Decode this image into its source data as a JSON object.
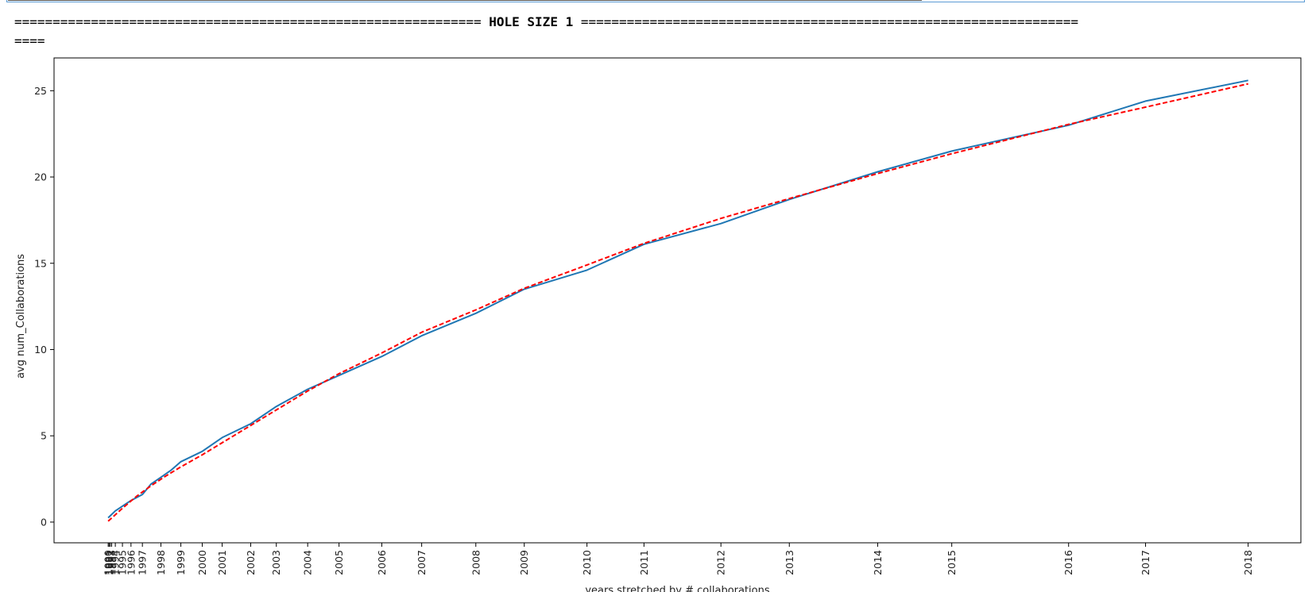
{
  "output": {
    "banner_left": "=============================================================",
    "banner_title": "HOLE SIZE 1",
    "banner_right": "=================================================================",
    "banner_tail": "===="
  },
  "chart_data": {
    "type": "line",
    "xlabel": "years stretched by # collaborations",
    "ylabel": "avg num_Collaborations",
    "ylim": [
      -1.2,
      26.9
    ],
    "yticks": [
      0,
      5,
      10,
      15,
      20,
      25
    ],
    "grid": false,
    "x_ticks": [
      {
        "label": "1990",
        "x": 0.0
      },
      {
        "label": "1991",
        "x": 0.03
      },
      {
        "label": "1992",
        "x": 0.07
      },
      {
        "label": "1993",
        "x": 0.12
      },
      {
        "label": "1994",
        "x": 0.25
      },
      {
        "label": "1995",
        "x": 0.5
      },
      {
        "label": "1996",
        "x": 0.8
      },
      {
        "label": "1997",
        "x": 1.2
      },
      {
        "label": "1998",
        "x": 1.85
      },
      {
        "label": "1999",
        "x": 2.55
      },
      {
        "label": "2000",
        "x": 3.3
      },
      {
        "label": "2001",
        "x": 4.0
      },
      {
        "label": "2002",
        "x": 5.0
      },
      {
        "label": "2003",
        "x": 5.9
      },
      {
        "label": "2004",
        "x": 7.0
      },
      {
        "label": "2005",
        "x": 8.1
      },
      {
        "label": "2006",
        "x": 9.6
      },
      {
        "label": "2007",
        "x": 11.0
      },
      {
        "label": "2008",
        "x": 12.9
      },
      {
        "label": "2009",
        "x": 14.6
      },
      {
        "label": "2010",
        "x": 16.8
      },
      {
        "label": "2011",
        "x": 18.8
      },
      {
        "label": "2012",
        "x": 21.5
      },
      {
        "label": "2013",
        "x": 23.9
      },
      {
        "label": "2014",
        "x": 27.0
      },
      {
        "label": "2015",
        "x": 29.6
      },
      {
        "label": "2016",
        "x": 33.7
      },
      {
        "label": "2017",
        "x": 36.4
      },
      {
        "label": "2018",
        "x": 40.0
      }
    ],
    "xlim": [
      -1.9,
      41.85
    ],
    "series": [
      {
        "color": "#1f77b4",
        "style": "solid",
        "x": [
          0.0,
          0.25,
          0.8,
          1.2,
          1.5,
          1.85,
          2.2,
          2.55,
          3.3,
          4.0,
          5.0,
          5.9,
          7.0,
          8.1,
          9.6,
          11.0,
          12.9,
          14.6,
          16.8,
          18.8,
          21.5,
          23.9,
          27.0,
          29.6,
          31.5,
          33.7,
          36.4,
          40.0
        ],
        "y": [
          0.25,
          0.65,
          1.25,
          1.6,
          2.2,
          2.6,
          3.0,
          3.5,
          4.1,
          4.9,
          5.7,
          6.7,
          7.7,
          8.5,
          9.6,
          10.8,
          12.1,
          13.5,
          14.6,
          16.1,
          17.3,
          18.7,
          20.3,
          21.5,
          22.2,
          23.0,
          24.4,
          25.6
        ]
      },
      {
        "color": "#ff0000",
        "style": "dashed",
        "x": [
          0.0,
          0.5,
          1.0,
          1.5,
          2.0,
          2.5,
          3.3,
          4.0,
          5.0,
          6.0,
          7.0,
          8.1,
          9.6,
          11.0,
          12.9,
          14.6,
          16.8,
          18.8,
          21.5,
          23.9,
          27.0,
          29.6,
          33.7,
          36.4,
          40.0
        ],
        "y": [
          0.05,
          0.8,
          1.5,
          2.1,
          2.65,
          3.15,
          3.9,
          4.6,
          5.6,
          6.6,
          7.6,
          8.6,
          9.8,
          11.0,
          12.3,
          13.55,
          14.9,
          16.15,
          17.6,
          18.75,
          20.2,
          21.35,
          23.05,
          24.05,
          25.4
        ]
      }
    ]
  }
}
